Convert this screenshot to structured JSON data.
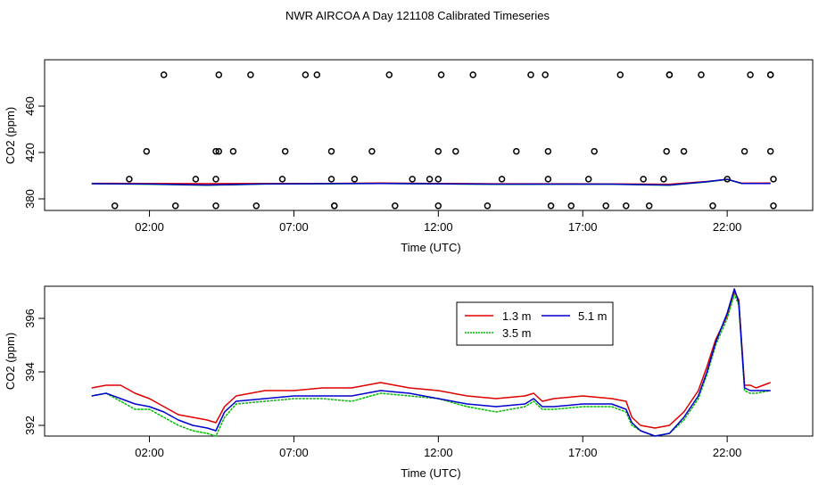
{
  "title": "NWR AIRCOA A  Day 121108  Calibrated Timeseries",
  "colors": {
    "h13": "#dd0000",
    "h35": "#00bb00",
    "h51": "#0000cc",
    "axis": "#000000"
  },
  "chart_data": [
    {
      "type": "line",
      "name": "top-panel",
      "xlabel": "Time (UTC)",
      "ylabel": "CO2 (ppm)",
      "xlim": [
        -1.63,
        24.96
      ],
      "ylim": [
        370,
        500
      ],
      "x_ticks": [
        {
          "v": 2,
          "label": "02:00"
        },
        {
          "v": 7,
          "label": "07:00"
        },
        {
          "v": 12,
          "label": "12:00"
        },
        {
          "v": 17,
          "label": "17:00"
        },
        {
          "v": 22,
          "label": "22:00"
        }
      ],
      "y_ticks": [
        {
          "v": 380,
          "label": "380"
        },
        {
          "v": 420,
          "label": "420"
        },
        {
          "v": 460,
          "label": "460"
        }
      ],
      "line_series": [
        {
          "name": "1.3 m",
          "color": "#dd0000",
          "x": [
            0,
            2,
            4,
            6,
            8,
            10,
            12,
            14,
            16,
            18,
            20,
            21.3,
            22,
            22.5,
            23.5
          ],
          "y": [
            393.4,
            393.3,
            393.1,
            393.2,
            393.3,
            393.6,
            393.3,
            393.0,
            393.0,
            392.9,
            392.6,
            395.0,
            396.8,
            393.5,
            393.6
          ]
        },
        {
          "name": "3.5 m",
          "color": "#00bb00",
          "x": [
            0,
            2,
            4,
            6,
            8,
            10,
            12,
            14,
            16,
            18,
            20,
            21.3,
            22,
            22.5,
            23.5
          ],
          "y": [
            393.1,
            392.6,
            391.7,
            392.8,
            393.0,
            393.2,
            392.9,
            392.5,
            392.6,
            392.6,
            391.8,
            394.6,
            396.8,
            393.2,
            393.3
          ]
        },
        {
          "name": "5.1 m",
          "color": "#0000cc",
          "x": [
            0,
            2,
            4,
            6,
            8,
            10,
            12,
            14,
            16,
            18,
            20,
            21.3,
            22,
            22.5,
            23.5
          ],
          "y": [
            393.1,
            392.8,
            391.9,
            392.9,
            393.1,
            393.3,
            393.0,
            392.7,
            392.7,
            392.7,
            391.9,
            394.8,
            396.9,
            393.3,
            393.3
          ]
        }
      ],
      "scatter_points": {
        "x": [
          0.8,
          1.3,
          1.9,
          2.5,
          2.9,
          3.6,
          4.3,
          4.3,
          4.3,
          4.4,
          4.4,
          4.9,
          5.5,
          5.7,
          6.6,
          6.7,
          7.4,
          7.8,
          8.3,
          8.3,
          8.4,
          8.4,
          9.1,
          9.7,
          10.3,
          10.5,
          11.1,
          11.7,
          12.0,
          12.0,
          12.0,
          12.1,
          12.6,
          13.2,
          13.7,
          14.2,
          14.7,
          15.2,
          15.7,
          15.8,
          15.8,
          15.9,
          16.6,
          17.2,
          17.4,
          17.8,
          18.3,
          18.5,
          19.1,
          19.3,
          19.8,
          19.9,
          20.0,
          20.0,
          20.5,
          21.1,
          21.5,
          22.0,
          22.6,
          22.8,
          23.5,
          23.5,
          23.5,
          23.6,
          23.6
        ],
        "y": [
          374,
          397,
          421,
          487,
          374,
          397,
          374,
          397,
          421,
          421,
          487,
          421,
          487,
          374,
          397,
          421,
          487,
          487,
          421,
          397,
          374,
          374,
          397,
          421,
          487,
          374,
          397,
          397,
          397,
          374,
          421,
          487,
          421,
          487,
          374,
          397,
          421,
          487,
          487,
          421,
          397,
          374,
          374,
          397,
          421,
          374,
          487,
          374,
          397,
          374,
          397,
          421,
          487,
          487,
          421,
          487,
          374,
          397,
          421,
          487,
          487,
          487,
          421,
          397,
          374
        ]
      }
    },
    {
      "type": "line",
      "name": "bottom-panel",
      "xlabel": "Time (UTC)",
      "ylabel": "CO2 (ppm)",
      "xlim": [
        -1.63,
        24.96
      ],
      "ylim": [
        391.6,
        397.2
      ],
      "x_ticks": [
        {
          "v": 2,
          "label": "02:00"
        },
        {
          "v": 7,
          "label": "07:00"
        },
        {
          "v": 12,
          "label": "12:00"
        },
        {
          "v": 17,
          "label": "17:00"
        },
        {
          "v": 22,
          "label": "22:00"
        }
      ],
      "y_ticks": [
        {
          "v": 392,
          "label": "392"
        },
        {
          "v": 394,
          "label": "394"
        },
        {
          "v": 396,
          "label": "396"
        }
      ],
      "legend": {
        "position": "top-center",
        "entries": [
          "1.3 m",
          "3.5 m",
          "5.1 m"
        ]
      },
      "series": [
        {
          "name": "1.3 m",
          "color": "#dd0000",
          "x": [
            0,
            0.5,
            1.0,
            1.5,
            2.0,
            2.5,
            3.0,
            3.5,
            4.0,
            4.3,
            4.6,
            5.0,
            6.0,
            7.0,
            8.0,
            9.0,
            10.0,
            11.0,
            12.0,
            13.0,
            14.0,
            15.0,
            15.3,
            15.6,
            16.0,
            17.0,
            18.0,
            18.5,
            18.7,
            19.0,
            19.5,
            20.0,
            20.5,
            21.0,
            21.3,
            21.6,
            22.0,
            22.25,
            22.4,
            22.6,
            22.8,
            23.0,
            23.5
          ],
          "y": [
            393.4,
            393.5,
            393.5,
            393.2,
            393.0,
            392.7,
            392.4,
            392.3,
            392.2,
            392.1,
            392.7,
            393.1,
            393.3,
            393.3,
            393.4,
            393.4,
            393.6,
            393.4,
            393.3,
            393.1,
            393.0,
            393.1,
            393.2,
            392.9,
            393.0,
            393.1,
            393.0,
            392.9,
            392.3,
            392.0,
            391.9,
            392.0,
            392.5,
            393.3,
            394.2,
            395.2,
            396.1,
            397.0,
            396.7,
            393.5,
            393.5,
            393.4,
            393.6
          ]
        },
        {
          "name": "3.5 m",
          "color": "#00bb00",
          "x": [
            0,
            0.5,
            1.0,
            1.5,
            2.0,
            2.5,
            3.0,
            3.5,
            4.0,
            4.3,
            4.6,
            5.0,
            6.0,
            7.0,
            8.0,
            9.0,
            10.0,
            11.0,
            12.0,
            13.0,
            14.0,
            15.0,
            15.3,
            15.6,
            16.0,
            17.0,
            18.0,
            18.5,
            18.7,
            19.0,
            19.5,
            20.0,
            20.5,
            21.0,
            21.3,
            21.6,
            22.0,
            22.25,
            22.4,
            22.6,
            22.8,
            23.0,
            23.5
          ],
          "y": [
            393.1,
            393.2,
            392.9,
            392.6,
            392.6,
            392.3,
            392.0,
            391.8,
            391.7,
            391.6,
            392.3,
            392.8,
            392.9,
            393.0,
            393.0,
            392.9,
            393.2,
            393.1,
            393.0,
            392.7,
            392.5,
            392.7,
            392.9,
            392.6,
            392.6,
            392.7,
            392.7,
            392.5,
            392.0,
            391.8,
            391.6,
            391.7,
            392.2,
            393.0,
            393.9,
            395.0,
            396.0,
            396.9,
            396.5,
            393.3,
            393.2,
            393.2,
            393.3
          ]
        },
        {
          "name": "5.1 m",
          "color": "#0000cc",
          "x": [
            0,
            0.5,
            1.0,
            1.5,
            2.0,
            2.5,
            3.0,
            3.5,
            4.0,
            4.3,
            4.6,
            5.0,
            6.0,
            7.0,
            8.0,
            9.0,
            10.0,
            11.0,
            12.0,
            13.0,
            14.0,
            15.0,
            15.3,
            15.6,
            16.0,
            17.0,
            18.0,
            18.5,
            18.7,
            19.0,
            19.5,
            20.0,
            20.5,
            21.0,
            21.3,
            21.6,
            22.0,
            22.25,
            22.4,
            22.6,
            22.8,
            23.0,
            23.5
          ],
          "y": [
            393.1,
            393.2,
            393.0,
            392.8,
            392.7,
            392.5,
            392.2,
            392.0,
            391.9,
            391.8,
            392.5,
            392.9,
            393.0,
            393.1,
            393.1,
            393.1,
            393.3,
            393.2,
            393.0,
            392.8,
            392.7,
            392.8,
            393.0,
            392.7,
            392.7,
            392.8,
            392.8,
            392.6,
            392.1,
            391.8,
            391.6,
            391.7,
            392.3,
            393.1,
            394.0,
            395.1,
            396.2,
            397.1,
            396.6,
            393.4,
            393.3,
            393.3,
            393.3
          ]
        }
      ]
    }
  ]
}
